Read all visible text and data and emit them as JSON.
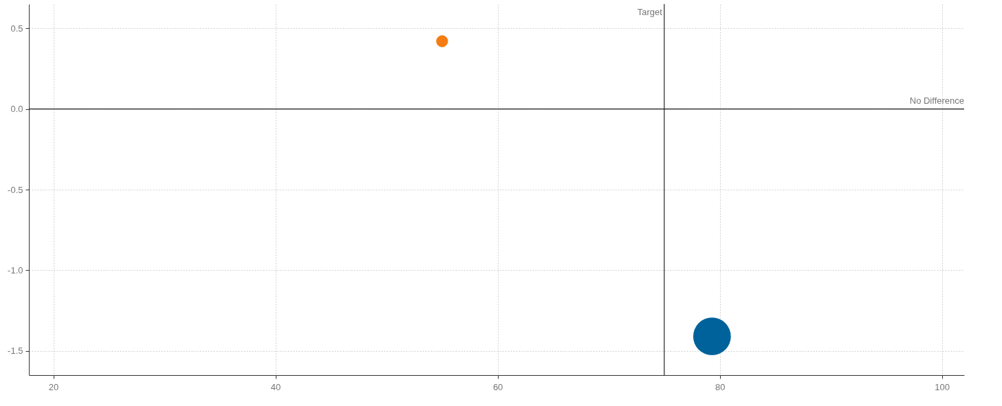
{
  "chart_data": {
    "type": "bubble",
    "x": [
      55,
      79.3
    ],
    "values": [
      0.42,
      -1.41
    ],
    "sizes": [
      0.1,
      1
    ],
    "colors": [
      "#f57c12",
      "#00629b"
    ],
    "xlim": [
      17.8,
      102
    ],
    "ylim": [
      -1.65,
      0.65
    ],
    "xticks": [
      20,
      40,
      60,
      80,
      100
    ],
    "yticks": [
      {
        "value": 0.5,
        "label": "0.5"
      },
      {
        "value": 0,
        "label": "0.0"
      },
      {
        "value": -0.5,
        "label": "-0.5"
      },
      {
        "value": -1,
        "label": "-1.0"
      },
      {
        "value": -1.5,
        "label": "-1.5"
      }
    ],
    "grid": true,
    "ref_lines": [
      {
        "axis": "x",
        "value": 75,
        "label": "Target",
        "color": "#222222"
      },
      {
        "axis": "y",
        "value": 0,
        "label": "No Difference",
        "color": "#222222"
      }
    ]
  }
}
